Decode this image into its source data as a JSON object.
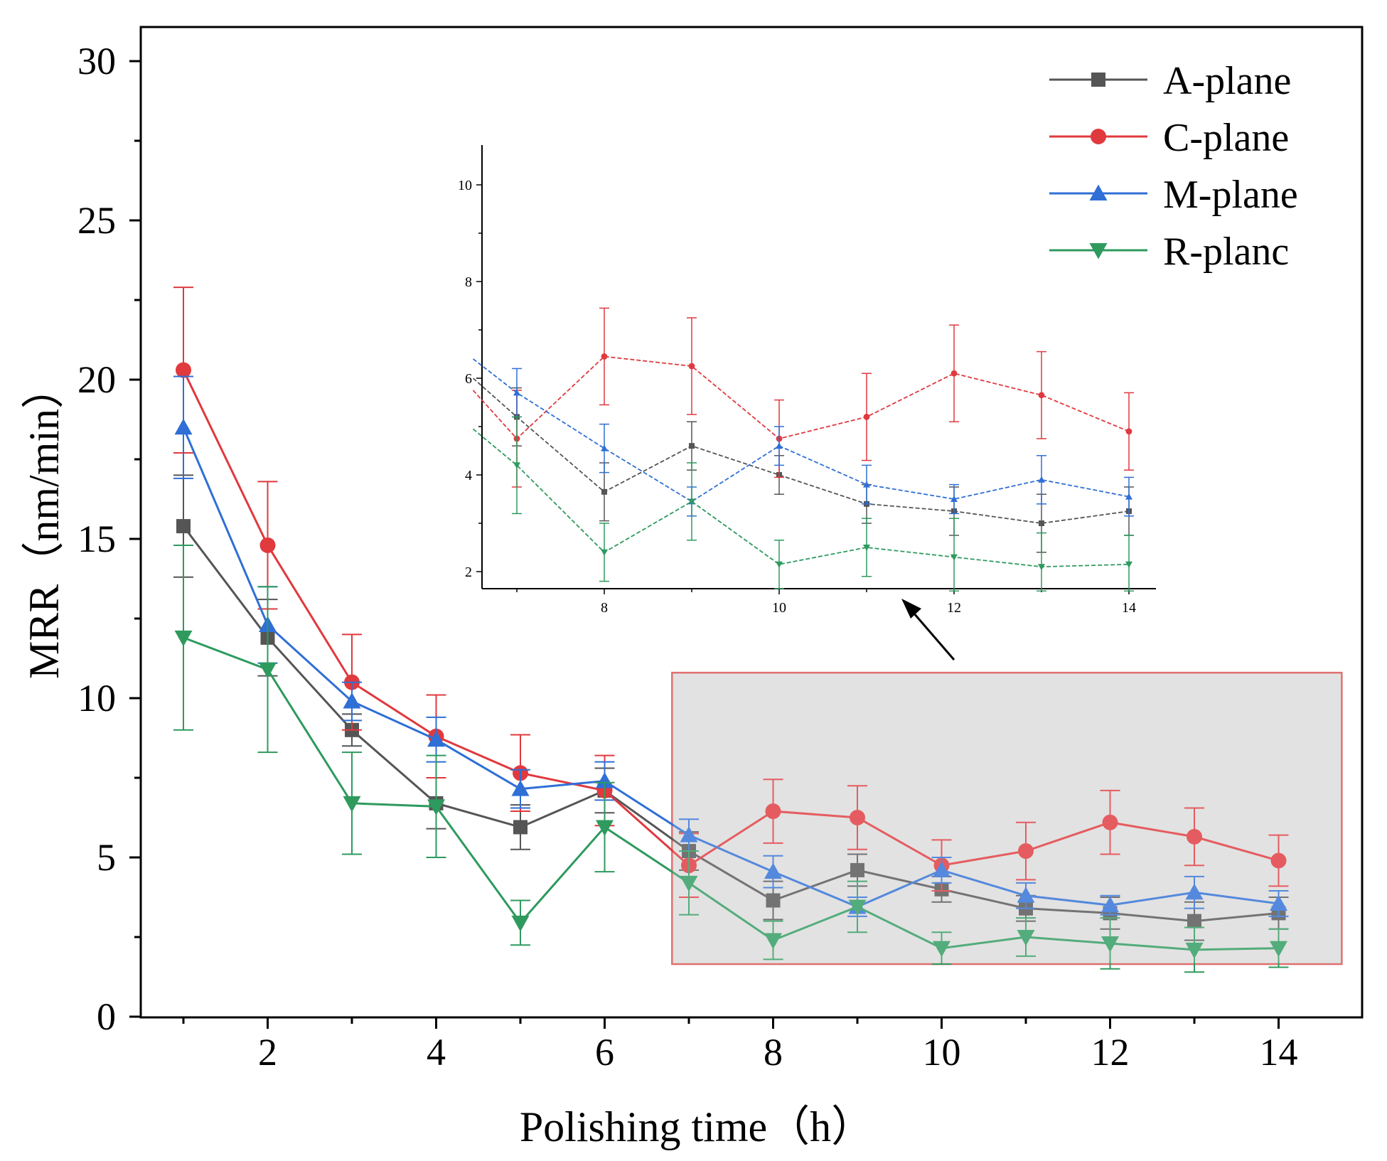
{
  "chart_data": {
    "type": "line",
    "title": "",
    "xlabel": "Polishing time（h）",
    "ylabel": "MRR（nm/min）",
    "xlim": [
      0.5,
      15.0
    ],
    "ylim": [
      0,
      30.0
    ],
    "x_ticks": [
      2,
      4,
      6,
      8,
      10,
      12,
      14
    ],
    "y_ticks": [
      0,
      5,
      10,
      15,
      20,
      25,
      30
    ],
    "x": [
      1,
      2,
      3,
      4,
      5,
      6,
      7,
      8,
      9,
      10,
      11,
      12,
      13,
      14
    ],
    "series": [
      {
        "name": "A-plane",
        "color": "#555555",
        "marker": "square",
        "values": [
          15.4,
          11.9,
          9.0,
          6.7,
          5.95,
          7.1,
          5.2,
          3.65,
          4.6,
          4.0,
          3.4,
          3.25,
          3.0,
          3.25
        ],
        "errors": [
          1.6,
          1.2,
          0.5,
          0.8,
          0.7,
          0.7,
          0.6,
          0.6,
          0.5,
          0.4,
          0.4,
          0.5,
          0.6,
          0.5
        ]
      },
      {
        "name": "C-plane",
        "color": "#e0393e",
        "marker": "circle",
        "values": [
          20.3,
          14.8,
          10.5,
          8.8,
          7.65,
          7.1,
          4.75,
          6.45,
          6.25,
          4.75,
          5.2,
          6.1,
          5.65,
          4.9
        ],
        "errors": [
          2.6,
          2.0,
          1.5,
          1.3,
          1.2,
          1.1,
          1.0,
          1.0,
          1.0,
          0.8,
          0.9,
          1.0,
          0.9,
          0.8
        ]
      },
      {
        "name": "M-plane",
        "color": "#2f6fd6",
        "marker": "triangle-up",
        "values": [
          18.5,
          12.3,
          9.9,
          8.7,
          7.15,
          7.4,
          5.7,
          4.55,
          3.45,
          4.6,
          3.8,
          3.5,
          3.9,
          3.55
        ],
        "errors": [
          1.6,
          1.2,
          0.6,
          0.7,
          0.6,
          0.6,
          0.5,
          0.5,
          0.3,
          0.4,
          0.4,
          0.3,
          0.5,
          0.4
        ]
      },
      {
        "name": "R-planc",
        "color": "#2e9a5e",
        "marker": "triangle-down",
        "values": [
          11.9,
          10.9,
          6.7,
          6.6,
          2.95,
          5.95,
          4.2,
          2.4,
          3.45,
          2.15,
          2.5,
          2.3,
          2.1,
          2.15
        ],
        "errors": [
          2.9,
          2.6,
          1.6,
          1.6,
          0.7,
          1.4,
          1.0,
          0.6,
          0.8,
          0.5,
          0.6,
          0.8,
          0.7,
          0.6
        ]
      }
    ],
    "legend": {
      "location": "top-right",
      "entries": [
        "A-plane",
        "C-plane",
        "M-plane",
        "R-planc"
      ]
    },
    "highlight_region": {
      "x_range": [
        6.8,
        14.75
      ],
      "y_range": [
        1.65,
        10.8
      ],
      "fill": "#dcdcdc",
      "stroke": "#e07070"
    },
    "inset": {
      "x_range": [
        6.5,
        14.3
      ],
      "y_range": [
        1.6,
        10.9
      ],
      "x_ticks": [
        8,
        10,
        12,
        14
      ],
      "y_ticks": [
        2,
        4,
        6,
        8,
        10
      ],
      "x_start": 6.5,
      "series_start_values": {
        "A-plane": 6.0,
        "C-plane": 5.75,
        "M-plane": 6.4,
        "R-planc": 4.95
      }
    }
  }
}
